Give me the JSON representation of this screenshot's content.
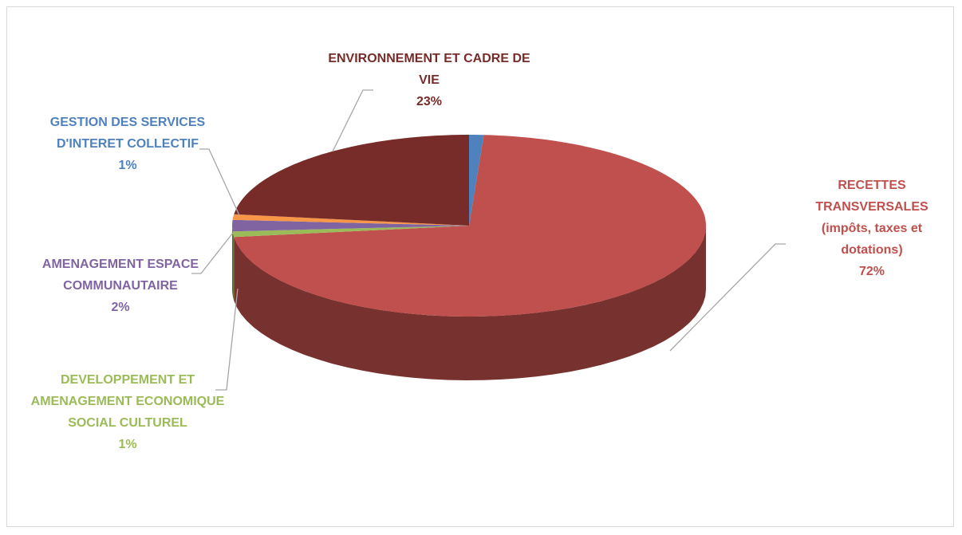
{
  "chart_data": {
    "type": "pie3d",
    "categories": [
      "GESTION DES SERVICES D'INTERET COLLECTIF",
      "RECETTES TRANSVERSALES (impôts, taxes et dotations)",
      "DEVELOPPEMENT ET AMENAGEMENT ECONOMIQUE SOCIAL CULTUREL",
      "AMENAGEMENT ESPACE COMMUNAUTAIRE",
      null,
      "ENVIRONNEMENT ET CADRE DE VIE"
    ],
    "values": [
      1,
      72,
      1,
      2,
      1,
      23
    ],
    "value_labels": [
      "1%",
      "72%",
      "1%",
      "2%",
      null,
      "23%"
    ],
    "colors": [
      "#4f81bd",
      "#c0504d",
      "#9bbb59",
      "#8064a2",
      "#f79646",
      "#772c2a"
    ]
  }
}
